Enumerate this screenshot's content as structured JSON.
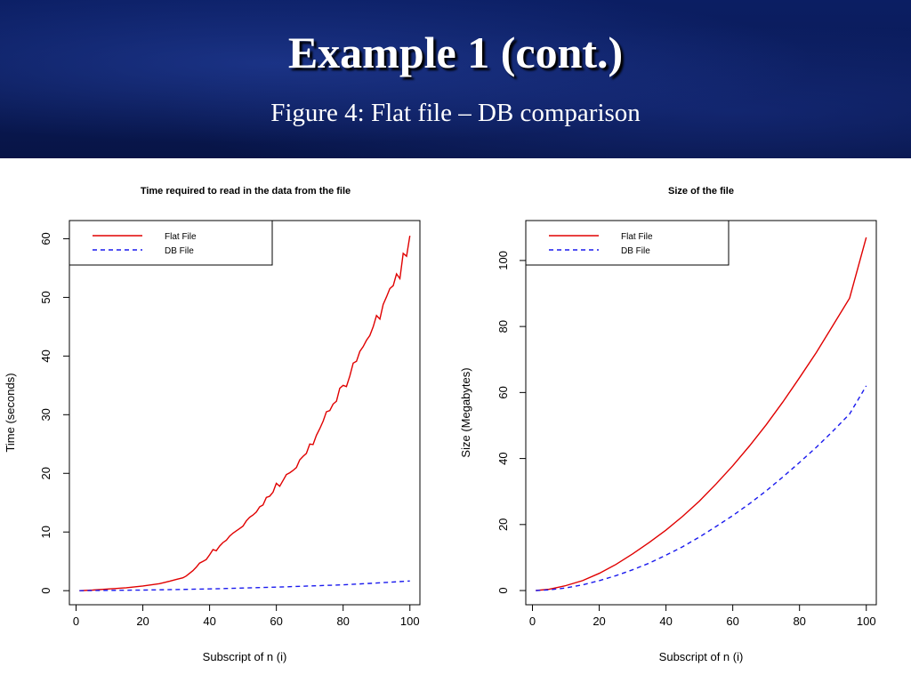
{
  "slide": {
    "title": "Example 1 (cont.)",
    "subtitle": "Figure 4: Flat file – DB comparison"
  },
  "colors": {
    "flat": "#e00000",
    "db": "#1a1aee",
    "banner": "#0b1e63"
  },
  "chart_data": [
    {
      "type": "line",
      "title": "Time required to read in the data from the file",
      "xlabel": "Subscript of n (i)",
      "ylabel": "Time (seconds)",
      "xlim": [
        -2,
        103
      ],
      "ylim": [
        -2.4,
        63.1
      ],
      "xticks": [
        0,
        20,
        40,
        60,
        80,
        100
      ],
      "yticks": [
        0,
        10,
        20,
        30,
        40,
        50,
        60
      ],
      "grid": false,
      "legend": "top-left",
      "series": [
        {
          "name": "Flat File",
          "style": "solid",
          "x": [
            1,
            5,
            10,
            15,
            20,
            25,
            28,
            30,
            32,
            33,
            35,
            36,
            37,
            38,
            39,
            40,
            41,
            42,
            43,
            44,
            45,
            46,
            47,
            48,
            49,
            50,
            51,
            52,
            53,
            54,
            55,
            56,
            57,
            58,
            59,
            60,
            61,
            62,
            63,
            64,
            65,
            66,
            67,
            68,
            69,
            70,
            71,
            72,
            73,
            74,
            75,
            76,
            77,
            78,
            79,
            80,
            81,
            82,
            83,
            84,
            85,
            86,
            87,
            88,
            89,
            90,
            91,
            92,
            93,
            94,
            95,
            96,
            97,
            98,
            99,
            100
          ],
          "y": [
            0,
            0.1,
            0.3,
            0.5,
            0.8,
            1.2,
            1.6,
            1.9,
            2.2,
            2.5,
            3.4,
            4.0,
            4.7,
            5.0,
            5.3,
            6.1,
            7.0,
            6.8,
            7.6,
            8.2,
            8.6,
            9.3,
            9.8,
            10.2,
            10.6,
            11.0,
            11.9,
            12.5,
            12.9,
            13.4,
            14.3,
            14.6,
            15.9,
            16.1,
            16.8,
            18.3,
            17.8,
            18.8,
            19.8,
            20.1,
            20.5,
            21.0,
            22.3,
            22.9,
            23.4,
            25.0,
            24.9,
            26.5,
            27.6,
            28.9,
            30.5,
            30.7,
            31.8,
            32.3,
            34.5,
            35.0,
            34.8,
            36.6,
            38.8,
            39.1,
            40.8,
            41.6,
            42.7,
            43.5,
            45.0,
            46.9,
            46.3,
            48.8,
            50.1,
            51.5,
            52.0,
            54.0,
            53.2,
            57.5,
            57.0,
            60.5
          ]
        },
        {
          "name": "DB File",
          "style": "dashed",
          "x": [
            1,
            10,
            20,
            30,
            40,
            50,
            60,
            70,
            80,
            90,
            100
          ],
          "y": [
            0,
            0.05,
            0.1,
            0.2,
            0.3,
            0.45,
            0.6,
            0.8,
            1.0,
            1.3,
            1.65
          ]
        }
      ]
    },
    {
      "type": "line",
      "title": "Size of the file",
      "xlabel": "Subscript of n (i)",
      "ylabel": "Size (Megabytes)",
      "xlim": [
        -2,
        103
      ],
      "ylim": [
        -4.3,
        112.1
      ],
      "xticks": [
        0,
        20,
        40,
        60,
        80,
        100
      ],
      "yticks": [
        0,
        20,
        40,
        60,
        80,
        100
      ],
      "grid": false,
      "legend": "top-left",
      "series": [
        {
          "name": "Flat File",
          "style": "solid",
          "x": [
            1,
            5,
            10,
            15,
            20,
            25,
            30,
            35,
            40,
            45,
            50,
            55,
            60,
            65,
            70,
            75,
            80,
            85,
            90,
            95,
            100
          ],
          "y": [
            0,
            0.4,
            1.5,
            3.0,
            5.2,
            7.9,
            11.1,
            14.6,
            18.3,
            22.5,
            27.1,
            32.3,
            37.8,
            43.8,
            50.2,
            57.1,
            64.5,
            72.1,
            80.3,
            88.6,
            107
          ]
        },
        {
          "name": "DB File",
          "style": "dashed",
          "x": [
            1,
            5,
            10,
            15,
            20,
            25,
            30,
            35,
            40,
            45,
            50,
            55,
            60,
            65,
            70,
            75,
            80,
            85,
            90,
            95,
            100
          ],
          "y": [
            0,
            0.2,
            0.8,
            1.7,
            3.0,
            4.5,
            6.3,
            8.3,
            10.7,
            13.3,
            16.2,
            19.4,
            22.7,
            26.3,
            30.2,
            34.4,
            38.8,
            43.4,
            48.3,
            53.5,
            62
          ]
        }
      ]
    }
  ]
}
